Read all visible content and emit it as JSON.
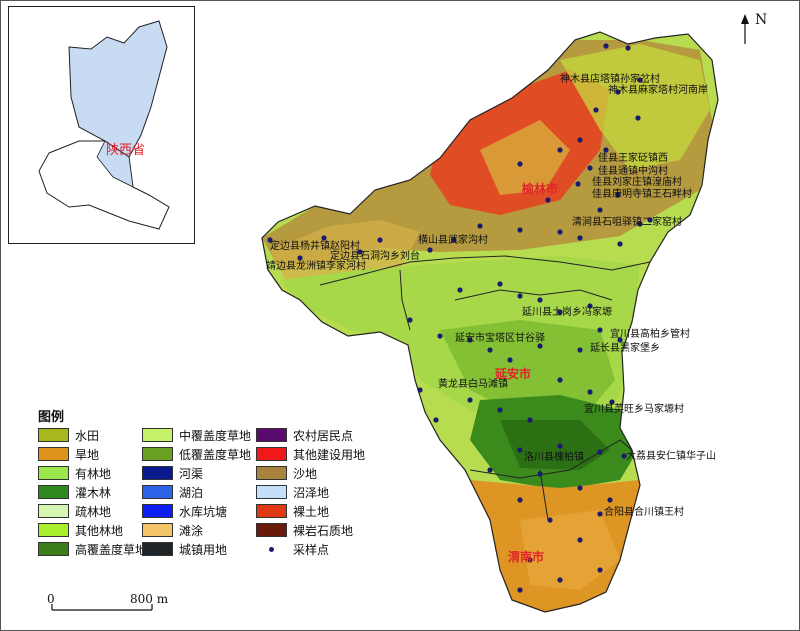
{
  "north_label": "N",
  "inset": {
    "province_label": "陕西省"
  },
  "cities": [
    {
      "key": "yulin",
      "label": "榆林市"
    },
    {
      "key": "yanan",
      "label": "延安市"
    },
    {
      "key": "weinan",
      "label": "渭南市"
    }
  ],
  "places": [
    "神木县店塔镇孙家岔村",
    "神木县麻家塔村河南岸",
    "佳县王家砭镇西",
    "佳县通镇中沟村",
    "佳县刘家庄镇湟庙村",
    "佳县康明寺镇王石畔村",
    "清涧县石咀驿镇二家窑村",
    "定边县杨井镇赵阳村",
    "定边县石洞沟乡刘台",
    "横山县武家沟村",
    "靖边县龙洲镇李家河村",
    "延川县土岗乡冯家塬",
    "延安市宝塔区甘谷驿",
    "延长县黑家堡乡",
    "黄龙县白马滩镇",
    "宜川县高柏乡管村",
    "宜川县英旺乡马家塬村",
    "洛川县槐柏镇",
    "大荔县安仁镇华子山",
    "合阳县合川镇王村"
  ],
  "legend": {
    "title": "图例",
    "items": [
      {
        "label": "水田",
        "color": "#a6b81c"
      },
      {
        "label": "旱地",
        "color": "#e0921e"
      },
      {
        "label": "有林地",
        "color": "#9ce84c"
      },
      {
        "label": "灌木林",
        "color": "#2e8a1e"
      },
      {
        "label": "疏林地",
        "color": "#d6f5b0"
      },
      {
        "label": "其他林地",
        "color": "#a8f02c"
      },
      {
        "label": "高覆盖度草地",
        "color": "#3d7d1a"
      },
      {
        "label": "中覆盖度草地",
        "color": "#c6f26a"
      },
      {
        "label": "低覆盖度草地",
        "color": "#6aa024"
      },
      {
        "label": "河渠",
        "color": "#0a1a8c"
      },
      {
        "label": "湖泊",
        "color": "#2c63e8"
      },
      {
        "label": "水库坑塘",
        "color": "#0c1ef2"
      },
      {
        "label": "滩涂",
        "color": "#f4c46a"
      },
      {
        "label": "城镇用地",
        "color": "#1e2428"
      },
      {
        "label": "农村居民点",
        "color": "#5a0a6e"
      },
      {
        "label": "其他建设用地",
        "color": "#f01818"
      },
      {
        "label": "沙地",
        "color": "#a8843e"
      },
      {
        "label": "沼泽地",
        "color": "#c4e0f8"
      },
      {
        "label": "裸土地",
        "color": "#e03a12"
      },
      {
        "label": "裸岩石质地",
        "color": "#6a1a0a"
      },
      {
        "label": "采样点",
        "color": "#1a1a6e",
        "icon": "dot"
      }
    ]
  },
  "scale": {
    "start": "0",
    "end": "800 m"
  }
}
